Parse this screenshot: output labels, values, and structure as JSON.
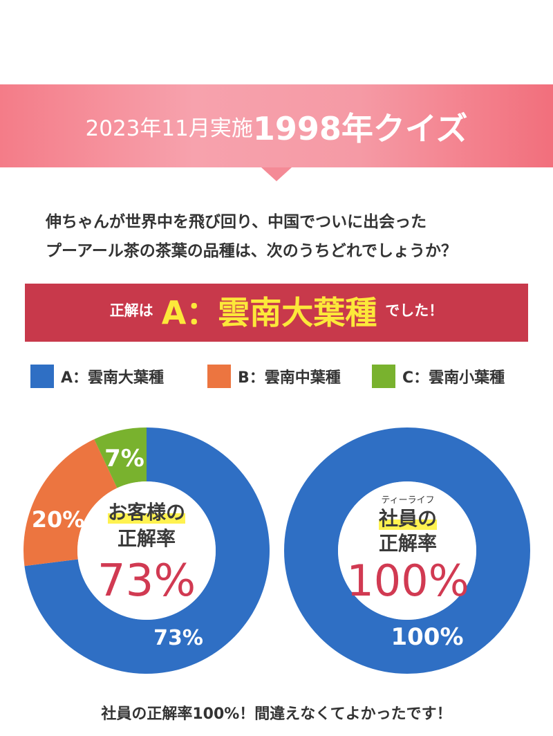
{
  "header": {
    "date_label": "2023年11月実施",
    "quiz_title": "1998年クイズ"
  },
  "question": {
    "line1": "伸ちゃんが世界中を飛び回り、中国でついに出会った",
    "line2": "プーアール茶の茶葉の品種は、次のうちどれでしょうか？"
  },
  "answer": {
    "prefix": "正解は",
    "key": "A：雲南大葉種",
    "suffix": "でした！"
  },
  "legend": [
    {
      "label": "A：雲南大葉種",
      "color": "#2f6fc4"
    },
    {
      "label": "B：雲南中葉種",
      "color": "#ec7540"
    },
    {
      "label": "C：雲南小葉種",
      "color": "#79b22e"
    }
  ],
  "chart_data": [
    {
      "type": "pie",
      "title_line1": "お客様の",
      "title_line2": "正解率",
      "center_value": "73%",
      "categories": [
        "A：雲南大葉種",
        "B：雲南中葉種",
        "C：雲南小葉種"
      ],
      "values": [
        73,
        20,
        7
      ],
      "labels": [
        "73%",
        "20%",
        "7%"
      ],
      "colors": [
        "#2f6fc4",
        "#ec7540",
        "#79b22e"
      ]
    },
    {
      "type": "pie",
      "title_ruby": "ティーライフ",
      "title_line1": "社員の",
      "title_line2": "正解率",
      "center_value": "100%",
      "categories": [
        "A：雲南大葉種"
      ],
      "values": [
        100
      ],
      "labels": [
        "100%"
      ],
      "colors": [
        "#2f6fc4"
      ]
    }
  ],
  "footer": {
    "text": "社員の正解率100%！間違えなくてよかったです！"
  }
}
